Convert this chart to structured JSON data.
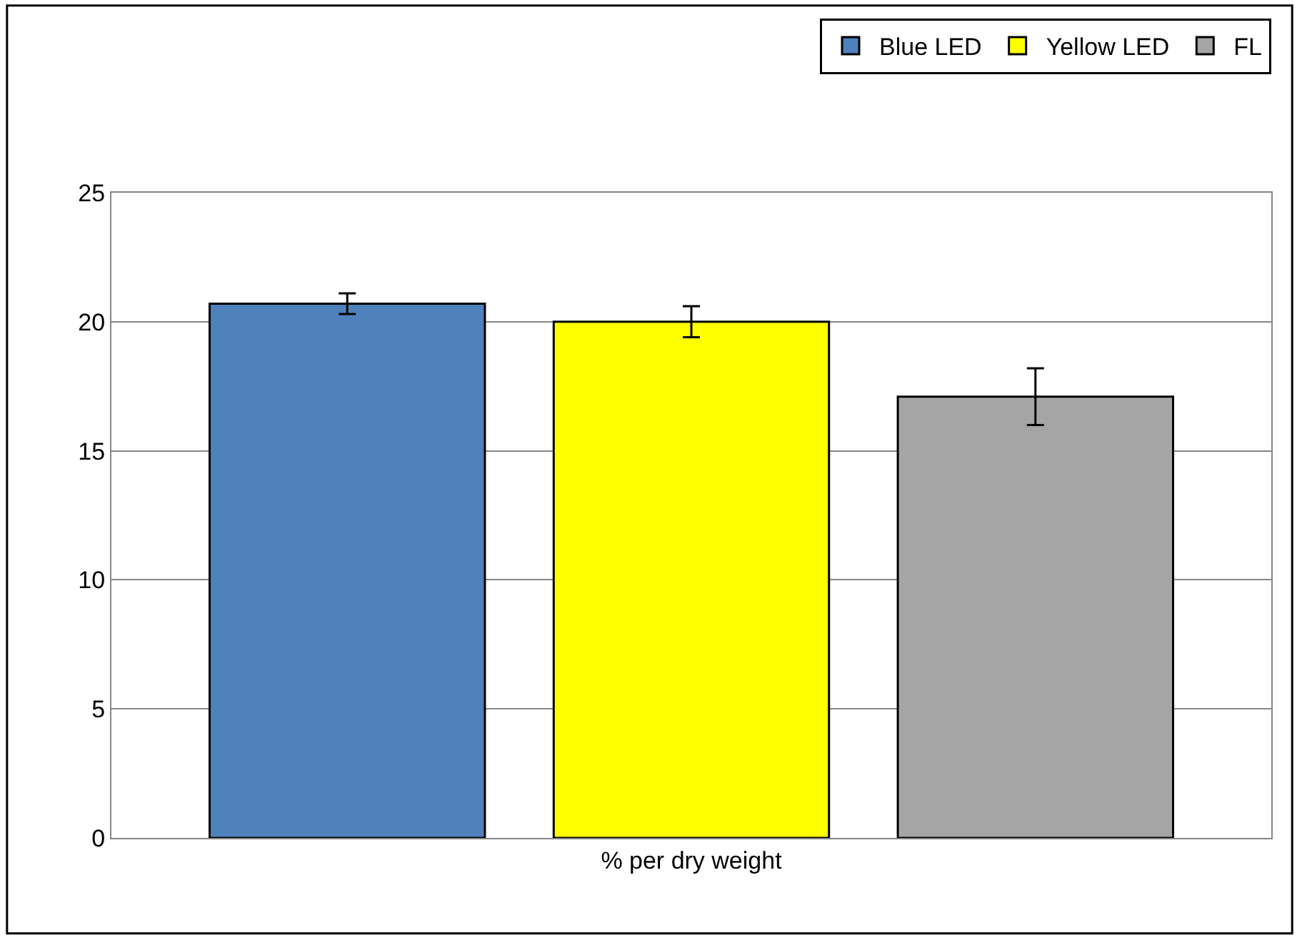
{
  "chart_data": {
    "type": "bar",
    "categories": [
      "% per dry weight"
    ],
    "series": [
      {
        "name": "Blue LED",
        "color": "#4f81bd",
        "values": [
          20.7
        ],
        "errors": [
          0.4
        ]
      },
      {
        "name": "Yellow LED",
        "color": "#ffff00",
        "values": [
          20.0
        ],
        "errors": [
          0.6
        ]
      },
      {
        "name": "FL",
        "color": "#a5a5a5",
        "values": [
          17.1
        ],
        "errors": [
          1.1
        ]
      }
    ],
    "ylim": [
      0,
      25
    ],
    "yticks": [
      0,
      5,
      10,
      15,
      20,
      25
    ],
    "grid": "y",
    "legend": "top right"
  }
}
